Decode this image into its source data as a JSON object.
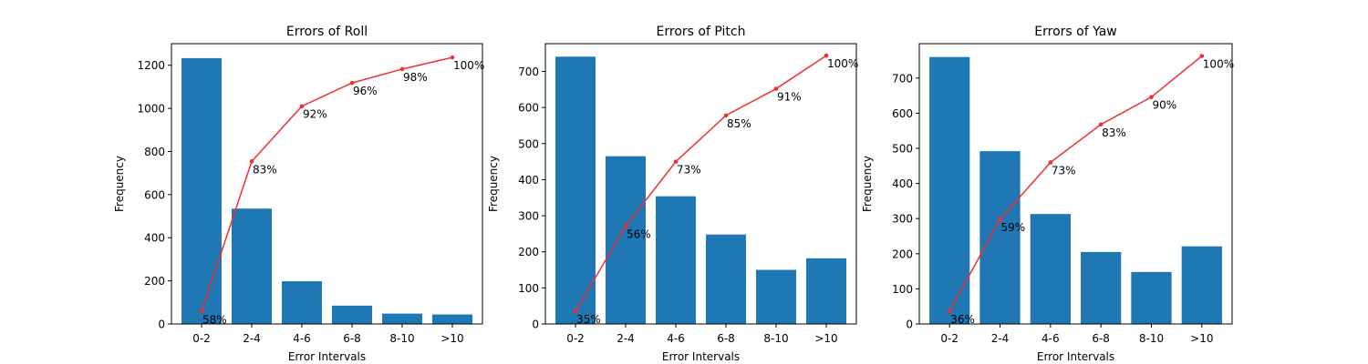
{
  "chart_data": [
    {
      "type": "bar",
      "title": "Errors of Roll",
      "xlabel": "Error Intervals",
      "ylabel": "Frequency",
      "categories": [
        "0-2",
        "2-4",
        "4-6",
        "6-8",
        "8-10",
        ">10"
      ],
      "values": [
        1233,
        535,
        198,
        85,
        48,
        44
      ],
      "ylim": [
        0,
        1300
      ],
      "yticks": [
        0,
        200,
        400,
        600,
        800,
        1000,
        1200
      ],
      "cumulative": {
        "values": [
          58,
          754,
          1010,
          1118,
          1182,
          1236
        ],
        "labels": [
          "58%",
          "83%",
          "92%",
          "96%",
          "98%",
          "100%"
        ],
        "color": "#f03030"
      },
      "bar_color": "#1f77b4",
      "grid": false
    },
    {
      "type": "bar",
      "title": "Errors of Pitch",
      "xlabel": "Error Intervals",
      "ylabel": "Frequency",
      "categories": [
        "0-2",
        "2-4",
        "4-6",
        "6-8",
        "8-10",
        ">10"
      ],
      "values": [
        741,
        465,
        354,
        248,
        150,
        182
      ],
      "ylim": [
        0,
        777
      ],
      "yticks": [
        0,
        100,
        200,
        300,
        400,
        500,
        600,
        700
      ],
      "cumulative": {
        "values": [
          35,
          271,
          450,
          578,
          652,
          744
        ],
        "labels": [
          "35%",
          "56%",
          "73%",
          "85%",
          "91%",
          "100%"
        ],
        "color": "#f03030"
      },
      "bar_color": "#1f77b4",
      "grid": false
    },
    {
      "type": "bar",
      "title": "Errors of Yaw",
      "xlabel": "Error Intervals",
      "ylabel": "Frequency",
      "categories": [
        "0-2",
        "2-4",
        "4-6",
        "6-8",
        "8-10",
        ">10"
      ],
      "values": [
        760,
        492,
        313,
        205,
        148,
        221
      ],
      "ylim": [
        0,
        798
      ],
      "yticks": [
        0,
        100,
        200,
        300,
        400,
        500,
        600,
        700
      ],
      "cumulative": {
        "values": [
          36,
          298,
          460,
          568,
          646,
          763
        ],
        "labels": [
          "36%",
          "59%",
          "73%",
          "83%",
          "90%",
          "100%"
        ],
        "color": "#f03030"
      },
      "bar_color": "#1f77b4",
      "grid": false
    }
  ]
}
